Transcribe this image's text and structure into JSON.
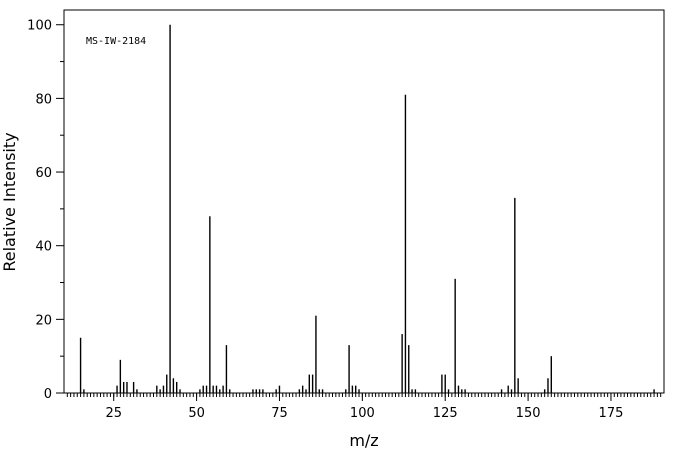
{
  "chart_data": {
    "type": "bar",
    "title": "",
    "annotation": "MS-IW-2184",
    "xlabel": "m/z",
    "ylabel": "Relative Intensity",
    "xlim": [
      10,
      191
    ],
    "ylim": [
      0,
      104
    ],
    "x_ticks": [
      25,
      50,
      75,
      100,
      125,
      150,
      175
    ],
    "y_ticks": [
      0,
      20,
      40,
      60,
      80,
      100
    ],
    "grid": false,
    "legend": "none",
    "line_color": "#000000",
    "series": [
      {
        "x": [
          15,
          16,
          26,
          27,
          28,
          29,
          31,
          32,
          38,
          39,
          40,
          41,
          42,
          43,
          44,
          45,
          51,
          52,
          53,
          54,
          55,
          56,
          57,
          58,
          59,
          60,
          67,
          68,
          69,
          70,
          74,
          75,
          81,
          82,
          83,
          84,
          85,
          86,
          87,
          88,
          95,
          96,
          97,
          98,
          99,
          112,
          113,
          114,
          115,
          116,
          124,
          125,
          126,
          128,
          129,
          130,
          131,
          142,
          144,
          145,
          146,
          147,
          155,
          156,
          157,
          188
        ],
        "y": [
          15,
          1,
          2,
          9,
          3,
          3,
          3,
          1,
          2,
          1,
          2,
          5,
          100,
          4,
          3,
          1,
          1,
          2,
          2,
          48,
          2,
          2,
          1,
          2,
          13,
          1,
          1,
          1,
          1,
          1,
          1,
          2,
          1,
          2,
          1,
          5,
          5,
          21,
          1,
          1,
          1,
          13,
          2,
          2,
          1,
          16,
          81,
          13,
          1,
          1,
          5,
          5,
          1,
          31,
          2,
          1,
          1,
          1,
          2,
          1,
          53,
          4,
          1,
          4,
          10,
          1
        ]
      }
    ]
  }
}
